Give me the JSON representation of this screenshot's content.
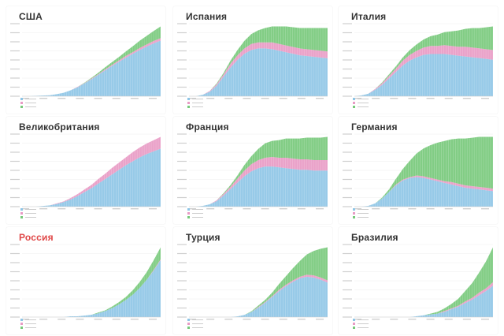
{
  "colors": {
    "active": "#8ec5e6",
    "deaths": "#e89ac4",
    "recovered": "#77c97b",
    "title_default": "#333333",
    "title_russia": "#e04848"
  },
  "chart_data": [
    {
      "type": "area",
      "title": "США",
      "stacked": true,
      "days": 90,
      "active": [
        0,
        0,
        1,
        2,
        3,
        6,
        10,
        17,
        26,
        37,
        49,
        62,
        75,
        88,
        100,
        112,
        123,
        134,
        144,
        153,
        161
      ],
      "deaths": [
        0,
        0,
        0,
        0,
        0,
        0,
        0,
        0,
        1,
        1,
        2,
        2,
        3,
        3,
        4,
        5,
        5,
        6,
        6,
        7,
        7
      ],
      "recovered": [
        0,
        0,
        0,
        0,
        0,
        0,
        0,
        0,
        0,
        1,
        2,
        4,
        6,
        8,
        10,
        13,
        17,
        21,
        25,
        29,
        34
      ]
    },
    {
      "type": "area",
      "title": "Испания",
      "stacked": true,
      "days": 90,
      "active": [
        0,
        0,
        2,
        6,
        14,
        26,
        38,
        48,
        56,
        61,
        63,
        63,
        62,
        60,
        58,
        56,
        54,
        53,
        52,
        51,
        50
      ],
      "deaths": [
        0,
        0,
        0,
        1,
        2,
        3,
        5,
        6,
        7,
        8,
        8,
        8,
        9,
        9,
        9,
        9,
        9,
        9,
        9,
        9,
        9
      ],
      "recovered": [
        0,
        0,
        0,
        0,
        1,
        2,
        4,
        7,
        10,
        13,
        16,
        19,
        21,
        23,
        25,
        26,
        27,
        28,
        29,
        30,
        31
      ]
    },
    {
      "type": "area",
      "title": "Италия",
      "stacked": true,
      "days": 90,
      "active": [
        0,
        1,
        3,
        8,
        14,
        22,
        30,
        38,
        44,
        48,
        51,
        52,
        52,
        52,
        51,
        50,
        49,
        48,
        47,
        46,
        45
      ],
      "deaths": [
        0,
        0,
        0,
        1,
        2,
        3,
        4,
        6,
        7,
        8,
        9,
        10,
        10,
        11,
        11,
        11,
        12,
        12,
        12,
        12,
        12
      ],
      "recovered": [
        0,
        0,
        0,
        0,
        1,
        2,
        3,
        4,
        6,
        8,
        10,
        12,
        14,
        16,
        18,
        20,
        22,
        24,
        25,
        27,
        29
      ]
    },
    {
      "type": "area",
      "title": "Великобритания",
      "stacked": true,
      "days": 90,
      "active": [
        0,
        0,
        0,
        1,
        2,
        4,
        7,
        11,
        16,
        22,
        28,
        35,
        42,
        49,
        56,
        63,
        69,
        75,
        80,
        84,
        88
      ],
      "deaths": [
        0,
        0,
        0,
        0,
        0,
        1,
        1,
        2,
        3,
        4,
        5,
        7,
        8,
        10,
        11,
        12,
        14,
        15,
        16,
        17,
        18
      ],
      "recovered": [
        0,
        0,
        0,
        0,
        0,
        0,
        0,
        0,
        0,
        0,
        0,
        0,
        0,
        0,
        0,
        0,
        0,
        0,
        0,
        0,
        0
      ]
    },
    {
      "type": "area",
      "title": "Франция",
      "stacked": true,
      "days": 90,
      "active": [
        0,
        0,
        1,
        3,
        7,
        14,
        22,
        30,
        38,
        44,
        48,
        50,
        50,
        49,
        48,
        47,
        46,
        46,
        45,
        45,
        45
      ],
      "deaths": [
        0,
        0,
        0,
        0,
        1,
        2,
        3,
        5,
        7,
        9,
        10,
        11,
        12,
        12,
        13,
        13,
        13,
        13,
        13,
        13,
        13
      ],
      "recovered": [
        0,
        0,
        0,
        0,
        0,
        1,
        2,
        4,
        7,
        10,
        14,
        18,
        20,
        22,
        24,
        25,
        26,
        27,
        28,
        28,
        29
      ]
    },
    {
      "type": "area",
      "title": "Германия",
      "stacked": true,
      "days": 90,
      "active": [
        0,
        0,
        1,
        4,
        10,
        18,
        26,
        32,
        35,
        36,
        35,
        33,
        31,
        29,
        27,
        25,
        23,
        22,
        21,
        20,
        19
      ],
      "deaths": [
        0,
        0,
        0,
        0,
        0,
        0,
        1,
        1,
        1,
        2,
        2,
        2,
        2,
        2,
        3,
        3,
        3,
        3,
        3,
        3,
        3
      ],
      "recovered": [
        0,
        0,
        0,
        0,
        1,
        3,
        7,
        13,
        20,
        27,
        34,
        40,
        45,
        49,
        52,
        55,
        57,
        59,
        61,
        62,
        63
      ]
    },
    {
      "type": "area",
      "title": "Россия",
      "stacked": true,
      "days": 90,
      "active": [
        0,
        0,
        0,
        0,
        0,
        0,
        0,
        1,
        1,
        2,
        3,
        5,
        8,
        12,
        17,
        23,
        30,
        39,
        50,
        62,
        76
      ],
      "deaths": [
        0,
        0,
        0,
        0,
        0,
        0,
        0,
        0,
        0,
        0,
        0,
        0,
        0,
        0,
        0,
        0,
        0,
        0,
        0,
        1,
        1
      ],
      "recovered": [
        0,
        0,
        0,
        0,
        0,
        0,
        0,
        0,
        0,
        0,
        0,
        1,
        1,
        2,
        3,
        4,
        6,
        8,
        10,
        13,
        16
      ]
    },
    {
      "type": "area",
      "title": "Турция",
      "stacked": true,
      "days": 90,
      "active": [
        0,
        0,
        0,
        0,
        0,
        0,
        0,
        1,
        3,
        7,
        13,
        20,
        28,
        36,
        43,
        49,
        54,
        56,
        55,
        52,
        48
      ],
      "deaths": [
        0,
        0,
        0,
        0,
        0,
        0,
        0,
        0,
        0,
        0,
        1,
        1,
        1,
        2,
        2,
        2,
        2,
        3,
        3,
        3,
        3
      ],
      "recovered": [
        0,
        0,
        0,
        0,
        0,
        0,
        0,
        0,
        0,
        1,
        2,
        3,
        5,
        8,
        12,
        17,
        22,
        28,
        34,
        40,
        46
      ]
    },
    {
      "type": "area",
      "title": "Бразилия",
      "stacked": true,
      "days": 90,
      "active": [
        0,
        0,
        0,
        0,
        0,
        0,
        0,
        0,
        0,
        1,
        2,
        3,
        4,
        6,
        9,
        12,
        16,
        20,
        25,
        30,
        36
      ],
      "deaths": [
        0,
        0,
        0,
        0,
        0,
        0,
        0,
        0,
        0,
        0,
        0,
        0,
        0,
        1,
        1,
        1,
        2,
        2,
        3,
        3,
        4
      ],
      "recovered": [
        0,
        0,
        0,
        0,
        0,
        0,
        0,
        0,
        0,
        0,
        0,
        1,
        2,
        3,
        5,
        8,
        12,
        17,
        23,
        31,
        40
      ]
    }
  ]
}
